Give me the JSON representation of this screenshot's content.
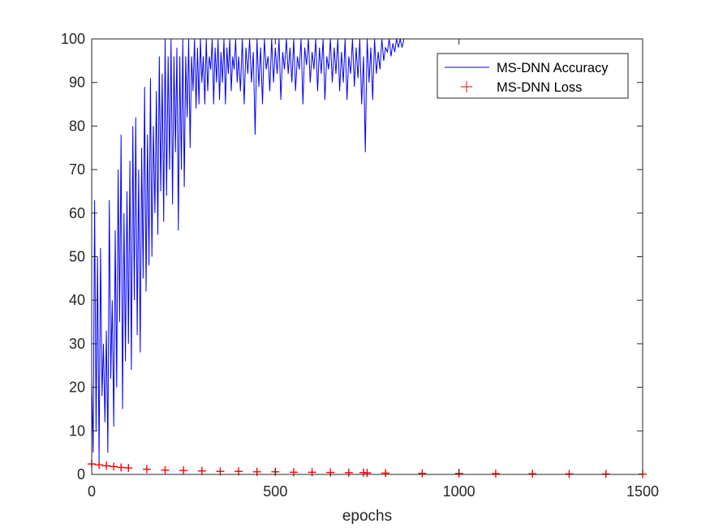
{
  "chart_data": {
    "type": "line",
    "title": "",
    "xlabel": "epochs",
    "ylabel": "",
    "xlim": [
      0,
      1500
    ],
    "ylim": [
      0,
      100
    ],
    "xticks": [
      "0",
      "500",
      "1000",
      "1500"
    ],
    "yticks": [
      "0",
      "10",
      "20",
      "30",
      "40",
      "50",
      "60",
      "70",
      "80",
      "90",
      "100"
    ],
    "grid": false,
    "legend_position": "top-right",
    "series": [
      {
        "name": "MS-DNN Accuracy",
        "style": "line",
        "color": "#0000ff",
        "x": [
          0,
          4,
          8,
          12,
          16,
          20,
          24,
          28,
          32,
          36,
          40,
          44,
          48,
          52,
          56,
          60,
          64,
          68,
          72,
          76,
          80,
          84,
          88,
          92,
          96,
          100,
          104,
          108,
          112,
          116,
          120,
          124,
          128,
          132,
          136,
          140,
          144,
          148,
          152,
          156,
          160,
          164,
          168,
          172,
          176,
          180,
          184,
          188,
          192,
          196,
          200,
          204,
          208,
          212,
          216,
          220,
          224,
          228,
          232,
          236,
          240,
          244,
          248,
          252,
          256,
          260,
          264,
          268,
          272,
          276,
          280,
          284,
          288,
          292,
          296,
          300,
          304,
          308,
          312,
          316,
          320,
          324,
          328,
          332,
          336,
          340,
          344,
          348,
          352,
          356,
          360,
          364,
          368,
          372,
          376,
          380,
          384,
          388,
          392,
          396,
          400,
          405,
          410,
          415,
          420,
          425,
          430,
          435,
          440,
          445,
          450,
          455,
          460,
          465,
          470,
          475,
          480,
          485,
          490,
          495,
          500,
          505,
          510,
          515,
          520,
          525,
          530,
          535,
          540,
          545,
          550,
          555,
          560,
          565,
          570,
          575,
          580,
          585,
          590,
          595,
          600,
          605,
          610,
          615,
          620,
          625,
          630,
          635,
          640,
          645,
          650,
          655,
          660,
          665,
          670,
          675,
          680,
          685,
          690,
          695,
          700,
          705,
          710,
          715,
          720,
          725,
          730,
          735,
          740,
          745,
          750,
          755,
          760,
          765,
          770,
          775,
          780,
          785,
          790,
          795,
          800,
          805,
          810,
          815,
          820,
          825,
          830,
          835,
          840,
          845,
          850,
          860,
          880,
          900,
          1000,
          1100,
          1200,
          1300,
          1400,
          1500
        ],
        "y": [
          22,
          5,
          63,
          10,
          50,
          3,
          52,
          18,
          30,
          12,
          33,
          5,
          63,
          22,
          40,
          11,
          56,
          20,
          70,
          35,
          78,
          15,
          60,
          26,
          65,
          30,
          72,
          24,
          80,
          40,
          82,
          32,
          70,
          28,
          75,
          45,
          89,
          42,
          78,
          48,
          91,
          50,
          80,
          60,
          88,
          55,
          96,
          65,
          92,
          58,
          100,
          64,
          96,
          70,
          100,
          62,
          96,
          74,
          98,
          56,
          96,
          70,
          100,
          66,
          96,
          82,
          100,
          75,
          96,
          88,
          100,
          84,
          98,
          85,
          100,
          90,
          96,
          85,
          100,
          88,
          96,
          93,
          100,
          85,
          98,
          90,
          100,
          86,
          97,
          90,
          100,
          85,
          98,
          92,
          100,
          88,
          96,
          93,
          100,
          90,
          96,
          88,
          100,
          85,
          98,
          92,
          100,
          90,
          97,
          78,
          100,
          89,
          98,
          85,
          100,
          93,
          96,
          88,
          100,
          90,
          98,
          92,
          100,
          86,
          97,
          93,
          100,
          92,
          98,
          90,
          100,
          88,
          96,
          93,
          100,
          85,
          98,
          94,
          100,
          90,
          97,
          93,
          100,
          88,
          98,
          92,
          100,
          86,
          96,
          93,
          100,
          90,
          98,
          92,
          100,
          88,
          97,
          90,
          100,
          86,
          96,
          92,
          100,
          89,
          98,
          91,
          100,
          85,
          96,
          74,
          100,
          90,
          98,
          86,
          100,
          92,
          97,
          93,
          100,
          95,
          98,
          97,
          100,
          96,
          99,
          97,
          100,
          98,
          100,
          98,
          100,
          100,
          100,
          100,
          100,
          100,
          100,
          100,
          100,
          100
        ]
      },
      {
        "name": "MS-DNN Loss",
        "style": "markers-plus",
        "color": "#ff0000",
        "x": [
          0,
          20,
          40,
          60,
          80,
          100,
          150,
          200,
          250,
          300,
          350,
          400,
          450,
          500,
          550,
          600,
          650,
          700,
          740,
          750,
          800,
          900,
          1000,
          1100,
          1200,
          1300,
          1400,
          1500
        ],
        "y": [
          2.4,
          2.2,
          2.0,
          1.8,
          1.6,
          1.5,
          1.2,
          1.0,
          0.9,
          0.8,
          0.7,
          0.7,
          0.6,
          0.6,
          0.5,
          0.5,
          0.45,
          0.4,
          0.4,
          0.35,
          0.3,
          0.25,
          0.2,
          0.18,
          0.15,
          0.12,
          0.1,
          0.08
        ]
      }
    ]
  }
}
